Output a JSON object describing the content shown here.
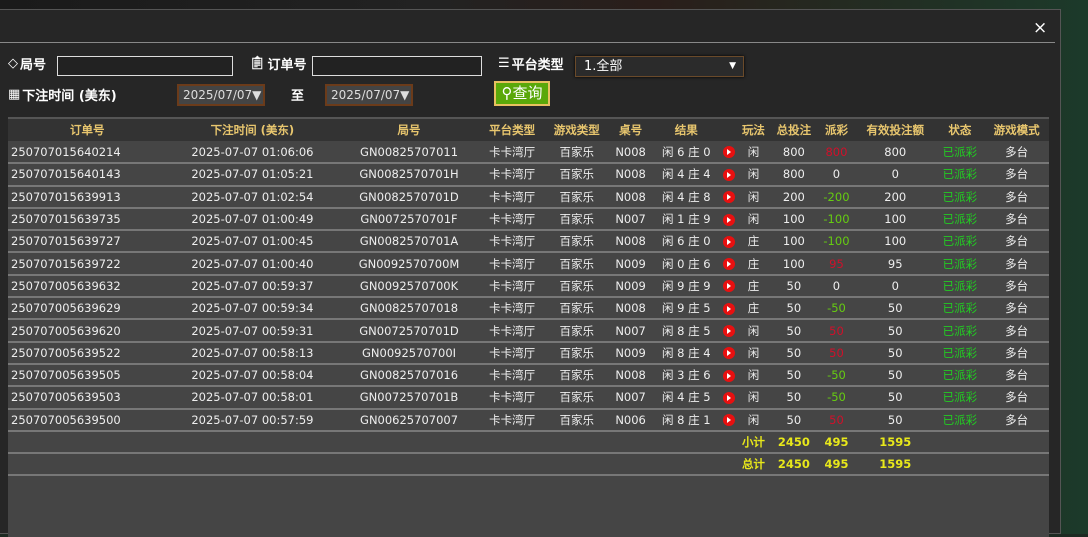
{
  "filters": {
    "round_label": "局号",
    "round_value": "",
    "order_label": "订单号",
    "order_value": "",
    "platform_label": "平台类型",
    "platform_value": "1.全部",
    "time_label": "下注时间 (美东)",
    "date_from": "2025/07/07",
    "to_label": "至",
    "date_to": "2025/07/07",
    "query_label": "查询"
  },
  "close_label": "×",
  "table": {
    "headers": [
      "订单号",
      "下注时间 (美东)",
      "局号",
      "平台类型",
      "游戏类型",
      "桌号",
      "结果",
      "",
      "玩法",
      "总投注",
      "派彩",
      "有效投注额",
      "状态",
      "游戏模式"
    ],
    "rows": [
      [
        "250707015640214",
        "2025-07-07 01:06:06",
        "GN00825707011",
        "卡卡湾厅",
        "百家乐",
        "N008",
        "闲 6 庄 0",
        "闲",
        "800",
        "800",
        "800",
        "已派彩",
        "多台",
        "red"
      ],
      [
        "250707015640143",
        "2025-07-07 01:05:21",
        "GN0082570701H",
        "卡卡湾厅",
        "百家乐",
        "N008",
        "闲 4 庄 4",
        "闲",
        "800",
        "0",
        "0",
        "已派彩",
        "多台",
        ""
      ],
      [
        "250707015639913",
        "2025-07-07 01:02:54",
        "GN0082570701D",
        "卡卡湾厅",
        "百家乐",
        "N008",
        "闲 4 庄 8",
        "闲",
        "200",
        "-200",
        "200",
        "已派彩",
        "多台",
        "grn"
      ],
      [
        "250707015639735",
        "2025-07-07 01:00:49",
        "GN0072570701F",
        "卡卡湾厅",
        "百家乐",
        "N007",
        "闲 1 庄 9",
        "闲",
        "100",
        "-100",
        "100",
        "已派彩",
        "多台",
        "grn"
      ],
      [
        "250707015639727",
        "2025-07-07 01:00:45",
        "GN0082570701A",
        "卡卡湾厅",
        "百家乐",
        "N008",
        "闲 6 庄 0",
        "庄",
        "100",
        "-100",
        "100",
        "已派彩",
        "多台",
        "grn"
      ],
      [
        "250707015639722",
        "2025-07-07 01:00:40",
        "GN0092570700M",
        "卡卡湾厅",
        "百家乐",
        "N009",
        "闲 0 庄 6",
        "庄",
        "100",
        "95",
        "95",
        "已派彩",
        "多台",
        "red"
      ],
      [
        "250707005639632",
        "2025-07-07 00:59:37",
        "GN0092570700K",
        "卡卡湾厅",
        "百家乐",
        "N009",
        "闲 9 庄 9",
        "庄",
        "50",
        "0",
        "0",
        "已派彩",
        "多台",
        ""
      ],
      [
        "250707005639629",
        "2025-07-07 00:59:34",
        "GN00825707018",
        "卡卡湾厅",
        "百家乐",
        "N008",
        "闲 9 庄 5",
        "庄",
        "50",
        "-50",
        "50",
        "已派彩",
        "多台",
        "grn"
      ],
      [
        "250707005639620",
        "2025-07-07 00:59:31",
        "GN0072570701D",
        "卡卡湾厅",
        "百家乐",
        "N007",
        "闲 8 庄 5",
        "闲",
        "50",
        "50",
        "50",
        "已派彩",
        "多台",
        "red"
      ],
      [
        "250707005639522",
        "2025-07-07 00:58:13",
        "GN0092570700I",
        "卡卡湾厅",
        "百家乐",
        "N009",
        "闲 8 庄 4",
        "闲",
        "50",
        "50",
        "50",
        "已派彩",
        "多台",
        "red"
      ],
      [
        "250707005639505",
        "2025-07-07 00:58:04",
        "GN00825707016",
        "卡卡湾厅",
        "百家乐",
        "N008",
        "闲 3 庄 6",
        "闲",
        "50",
        "-50",
        "50",
        "已派彩",
        "多台",
        "grn"
      ],
      [
        "250707005639503",
        "2025-07-07 00:58:01",
        "GN0072570701B",
        "卡卡湾厅",
        "百家乐",
        "N007",
        "闲 4 庄 5",
        "闲",
        "50",
        "-50",
        "50",
        "已派彩",
        "多台",
        "grn"
      ],
      [
        "250707005639500",
        "2025-07-07 00:57:59",
        "GN00625707007",
        "卡卡湾厅",
        "百家乐",
        "N006",
        "闲 8 庄 1",
        "闲",
        "50",
        "50",
        "50",
        "已派彩",
        "多台",
        "red"
      ]
    ],
    "subtotal": {
      "label": "小计",
      "bet": "2450",
      "payout": "495",
      "valid": "1595"
    },
    "total": {
      "label": "总计",
      "bet": "2450",
      "payout": "495",
      "valid": "1595"
    }
  },
  "colors": {
    "header_text": "#e8c66e",
    "payout_win": "#d0102a",
    "payout_loss": "#66cc11",
    "status": "#22cc22",
    "totals": "#e8e81a"
  }
}
